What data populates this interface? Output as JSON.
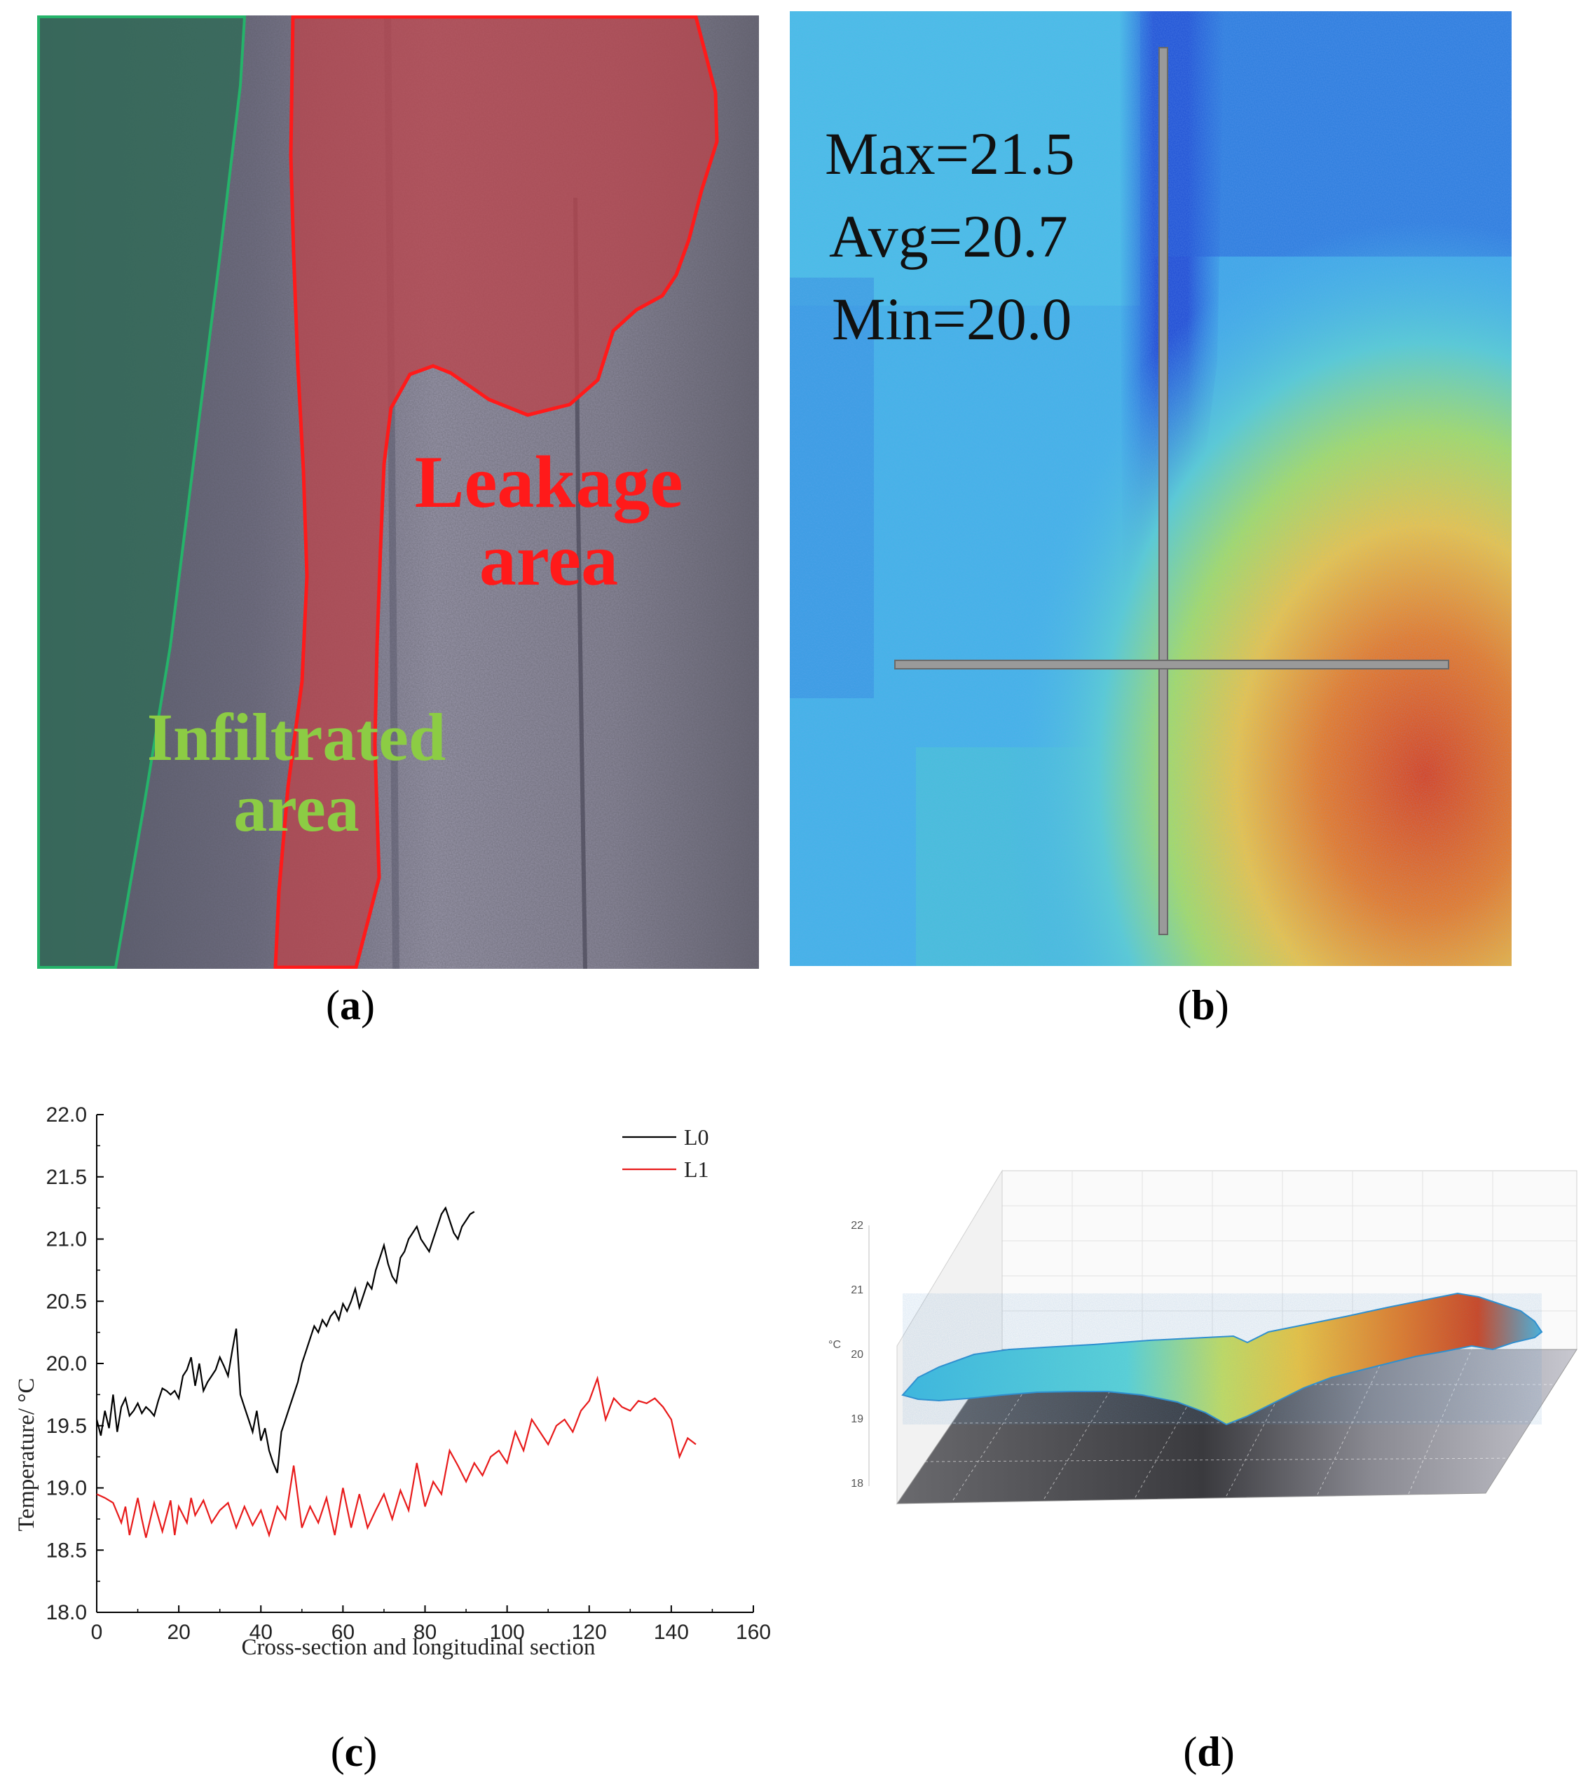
{
  "panels": {
    "a": {
      "caption": "a",
      "labels": {
        "leakage": [
          "Leakage",
          "area"
        ],
        "infiltrated": [
          "Infiltrated",
          "area"
        ]
      },
      "colors": {
        "leakage_fill": "#b8454d",
        "leakage_stroke": "#ff1a1a",
        "infiltrated_fill": "#2f6b57",
        "infiltrated_stroke": "#25b36a",
        "leakage_text": "#ff1a1a",
        "infiltrated_text": "#8ccc44"
      }
    },
    "b": {
      "caption": "b",
      "stats": [
        "Max=21.5",
        "Avg=20.7",
        "Min=20.0"
      ]
    },
    "c": {
      "caption": "c"
    },
    "d": {
      "caption": "d",
      "z_ticks": [
        "22",
        "21",
        "20",
        "19",
        "18"
      ],
      "z_unit": "°C"
    }
  },
  "chart_data": {
    "type": "line",
    "title": "",
    "xlabel": "Cross-section and longitudinal section",
    "ylabel": "Temperature/ °C",
    "xlim": [
      0,
      160
    ],
    "ylim": [
      18.0,
      22.0
    ],
    "x_ticks": [
      "0",
      "20",
      "40",
      "60",
      "80",
      "100",
      "120",
      "140",
      "160"
    ],
    "y_ticks": [
      "18.0",
      "18.5",
      "19.0",
      "19.5",
      "20.0",
      "20.5",
      "21.0",
      "21.5",
      "22.0"
    ],
    "legend_position": "top-right",
    "grid": false,
    "series": [
      {
        "name": "L0",
        "color": "#000000",
        "x": [
          0,
          1,
          2,
          3,
          4,
          5,
          6,
          7,
          8,
          9,
          10,
          11,
          12,
          13,
          14,
          15,
          16,
          17,
          18,
          19,
          20,
          21,
          22,
          23,
          24,
          25,
          26,
          27,
          28,
          29,
          30,
          31,
          32,
          33,
          34,
          35,
          36,
          37,
          38,
          39,
          40,
          41,
          42,
          43,
          44,
          45,
          46,
          47,
          48,
          49,
          50,
          51,
          52,
          53,
          54,
          55,
          56,
          57,
          58,
          59,
          60,
          61,
          62,
          63,
          64,
          65,
          66,
          67,
          68,
          69,
          70,
          71,
          72,
          73,
          74,
          75,
          76,
          77,
          78,
          79,
          80,
          81,
          82,
          83,
          84,
          85,
          86,
          87,
          88,
          89,
          90,
          91,
          92
        ],
        "y": [
          19.55,
          19.42,
          19.62,
          19.48,
          19.75,
          19.45,
          19.65,
          19.72,
          19.58,
          19.62,
          19.68,
          19.6,
          19.65,
          19.62,
          19.58,
          19.7,
          19.8,
          19.78,
          19.75,
          19.78,
          19.72,
          19.9,
          19.95,
          20.05,
          19.82,
          20.0,
          19.78,
          19.85,
          19.9,
          19.95,
          20.05,
          19.98,
          19.9,
          20.1,
          20.28,
          19.75,
          19.65,
          19.55,
          19.45,
          19.62,
          19.38,
          19.48,
          19.3,
          19.2,
          19.12,
          19.45,
          19.55,
          19.65,
          19.75,
          19.85,
          20.0,
          20.1,
          20.2,
          20.3,
          20.25,
          20.35,
          20.3,
          20.38,
          20.42,
          20.35,
          20.48,
          20.42,
          20.5,
          20.6,
          20.45,
          20.55,
          20.65,
          20.6,
          20.75,
          20.85,
          20.95,
          20.8,
          20.7,
          20.65,
          20.85,
          20.9,
          21.0,
          21.05,
          21.1,
          21.0,
          20.95,
          20.9,
          21.0,
          21.1,
          21.2,
          21.25,
          21.15,
          21.05,
          21.0,
          21.1,
          21.15,
          21.2,
          21.22
        ]
      },
      {
        "name": "L1",
        "color": "#e81a1a",
        "x": [
          0,
          2,
          4,
          6,
          7,
          8,
          10,
          11,
          12,
          14,
          16,
          18,
          19,
          20,
          22,
          23,
          24,
          26,
          28,
          30,
          32,
          34,
          36,
          38,
          40,
          42,
          44,
          46,
          48,
          50,
          52,
          54,
          56,
          58,
          60,
          62,
          64,
          66,
          68,
          70,
          72,
          74,
          76,
          78,
          80,
          82,
          84,
          86,
          88,
          90,
          92,
          94,
          96,
          98,
          100,
          102,
          104,
          106,
          108,
          110,
          112,
          114,
          116,
          118,
          120,
          122,
          124,
          126,
          128,
          130,
          132,
          134,
          136,
          138,
          140,
          142,
          144,
          146
        ],
        "y": [
          18.95,
          18.92,
          18.88,
          18.72,
          18.85,
          18.62,
          18.92,
          18.75,
          18.6,
          18.88,
          18.65,
          18.9,
          18.62,
          18.85,
          18.72,
          18.92,
          18.78,
          18.9,
          18.72,
          18.82,
          18.88,
          18.68,
          18.85,
          18.7,
          18.82,
          18.62,
          18.85,
          18.75,
          19.18,
          18.68,
          18.85,
          18.72,
          18.92,
          18.62,
          19.0,
          18.68,
          18.95,
          18.68,
          18.82,
          18.95,
          18.75,
          18.98,
          18.82,
          19.2,
          18.85,
          19.05,
          18.95,
          19.3,
          19.18,
          19.05,
          19.2,
          19.1,
          19.25,
          19.3,
          19.2,
          19.45,
          19.3,
          19.55,
          19.45,
          19.35,
          19.5,
          19.55,
          19.45,
          19.62,
          19.7,
          19.88,
          19.55,
          19.72,
          19.65,
          19.62,
          19.7,
          19.68,
          19.72,
          19.65,
          19.55,
          19.25,
          19.4,
          19.35
        ]
      }
    ]
  }
}
